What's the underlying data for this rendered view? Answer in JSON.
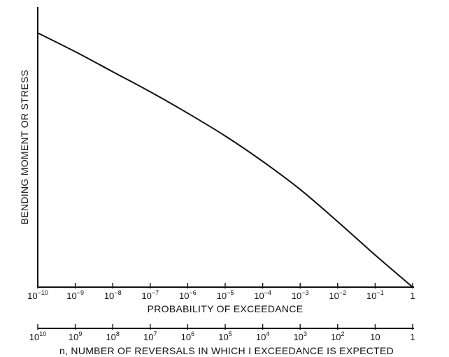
{
  "chart_data": {
    "type": "line",
    "ylabel": "BENDING MOMENT OR STRESS",
    "xlabel": "PROBABILITY OF EXCEEDANCE",
    "x2label": "n, NUMBER OF REVERSALS IN WHICH I EXCEEDANCE IS EXPECTED",
    "x_scale": "log",
    "x_exponents": [
      -10,
      -9,
      -8,
      -7,
      -6,
      -5,
      -4,
      -3,
      -2,
      -1,
      0
    ],
    "x_tick_labels": [
      {
        "base": "10",
        "exp": "−10"
      },
      {
        "base": "10",
        "exp": "−9"
      },
      {
        "base": "10",
        "exp": "−8"
      },
      {
        "base": "10",
        "exp": "−7"
      },
      {
        "base": "10",
        "exp": "−6"
      },
      {
        "base": "10",
        "exp": "−5"
      },
      {
        "base": "10",
        "exp": "−4"
      },
      {
        "base": "10",
        "exp": "−3"
      },
      {
        "base": "10",
        "exp": "−2"
      },
      {
        "base": "10",
        "exp": "−1"
      },
      {
        "base": "1",
        "exp": ""
      }
    ],
    "x2_tick_labels": [
      {
        "base": "10",
        "exp": "10"
      },
      {
        "base": "10",
        "exp": "9"
      },
      {
        "base": "10",
        "exp": "8"
      },
      {
        "base": "10",
        "exp": "7"
      },
      {
        "base": "10",
        "exp": "6"
      },
      {
        "base": "10",
        "exp": "5"
      },
      {
        "base": "10",
        "exp": "4"
      },
      {
        "base": "10",
        "exp": "3"
      },
      {
        "base": "10",
        "exp": "2"
      },
      {
        "base": "10",
        "exp": ""
      },
      {
        "base": "1",
        "exp": ""
      }
    ],
    "series": [
      {
        "x": [
          1e-10,
          1e-09,
          1e-08,
          1e-07,
          1e-06,
          1e-05,
          0.0001,
          0.001,
          0.01,
          0.1,
          1
        ],
        "y": [
          0.95,
          0.88,
          0.805,
          0.73,
          0.65,
          0.565,
          0.47,
          0.365,
          0.245,
          0.12,
          0.0
        ]
      }
    ],
    "ylim": [
      0,
      1
    ],
    "y_ticks": "none",
    "grid": false
  }
}
